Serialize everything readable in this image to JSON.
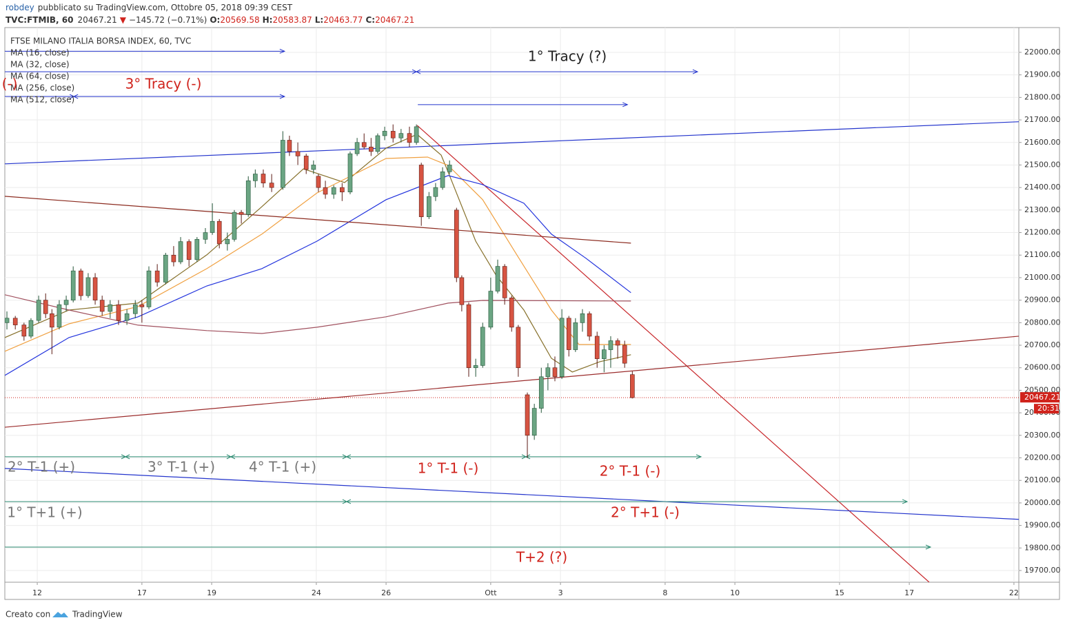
{
  "header": {
    "author": "robdey",
    "published": "pubblicato su TradingView.com, Ottobre 05, 2018 09:39 CEST",
    "symbol": "TVC:FTMIB, 60",
    "last": "20467.21",
    "arrow": "▼",
    "change": "−145.72 (−0.71%)",
    "ohlc": [
      {
        "label": "O:",
        "value": "20569.58"
      },
      {
        "label": "H:",
        "value": "20583.87"
      },
      {
        "label": "L:",
        "value": "20463.77"
      },
      {
        "label": "C:",
        "value": "20467.21"
      }
    ]
  },
  "footer": {
    "made_with": "Creato con",
    "brand": "TradingView"
  },
  "chart_data": {
    "type": "candlestick",
    "title": "FTSE MILANO ITALIA BORSA INDEX, 60, TVC",
    "xlim": [
      -0.93,
      28.14
    ],
    "ylim": [
      19648,
      22110
    ],
    "xticks": [
      {
        "value": 0,
        "label": "12"
      },
      {
        "value": 3,
        "label": "17"
      },
      {
        "value": 5,
        "label": "19"
      },
      {
        "value": 8,
        "label": "24"
      },
      {
        "value": 10,
        "label": "26"
      },
      {
        "value": 13,
        "label": "Ott"
      },
      {
        "value": 15,
        "label": "3"
      },
      {
        "value": 18,
        "label": "8"
      },
      {
        "value": 20,
        "label": "10"
      },
      {
        "value": 23,
        "label": "15"
      },
      {
        "value": 25,
        "label": "17"
      },
      {
        "value": 28,
        "label": "22"
      }
    ],
    "yticks": [
      {
        "value": 19700,
        "label": "19700.00"
      },
      {
        "value": 19800,
        "label": "19800.00"
      },
      {
        "value": 19900,
        "label": "19900.00"
      },
      {
        "value": 20000,
        "label": "20000.00"
      },
      {
        "value": 20100,
        "label": "20100.00"
      },
      {
        "value": 20200,
        "label": "20200.00"
      },
      {
        "value": 20300,
        "label": "20300.00"
      },
      {
        "value": 20400,
        "label": "20400.00"
      },
      {
        "value": 20500,
        "label": "20500.00"
      },
      {
        "value": 20600,
        "label": "20600.00"
      },
      {
        "value": 20700,
        "label": "20700.00"
      },
      {
        "value": 20800,
        "label": "20800.00"
      },
      {
        "value": 20900,
        "label": "20900.00"
      },
      {
        "value": 21000,
        "label": "21000.00"
      },
      {
        "value": 21100,
        "label": "21100.00"
      },
      {
        "value": 21200,
        "label": "21200.00"
      },
      {
        "value": 21300,
        "label": "21300.00"
      },
      {
        "value": 21400,
        "label": "21400.00"
      },
      {
        "value": 21500,
        "label": "21500.00"
      },
      {
        "value": 21600,
        "label": "21600.00"
      },
      {
        "value": 21700,
        "label": "21700.00"
      },
      {
        "value": 21800,
        "label": "21800.00"
      },
      {
        "value": 21900,
        "label": "21900.00"
      },
      {
        "value": 22000,
        "label": "22000.00"
      }
    ],
    "grid": true,
    "up_color": "#6ba583",
    "down_color": "#d75442",
    "last_price": 20467.21,
    "last_price_label": "20467.21",
    "countdown": "20:31",
    "last_color": "#d0231c",
    "candles": {
      "x": [
        -0.87,
        -0.63,
        -0.38,
        -0.18,
        0.04,
        0.24,
        0.42,
        0.63,
        0.83,
        1.03,
        1.25,
        1.46,
        1.66,
        1.86,
        2.09,
        2.33,
        2.57,
        2.81,
        3.0,
        3.2,
        3.44,
        3.68,
        3.91,
        4.11,
        4.35,
        4.58,
        4.82,
        5.02,
        5.22,
        5.45,
        5.65,
        5.85,
        6.05,
        6.25,
        6.48,
        6.72,
        7.04,
        7.23,
        7.47,
        7.71,
        7.92,
        8.06,
        8.26,
        8.5,
        8.74,
        8.97,
        9.17,
        9.37,
        9.57,
        9.76,
        9.96,
        10.2,
        10.43,
        10.67,
        10.87,
        11.01,
        11.23,
        11.42,
        11.62,
        11.82,
        12.02,
        12.17,
        12.37,
        12.57,
        12.77,
        13.0,
        13.2,
        13.4,
        13.6,
        13.79,
        14.05,
        14.25,
        14.45,
        14.64,
        14.84,
        15.04,
        15.24,
        15.43,
        15.63,
        15.83,
        16.05,
        16.25,
        16.44,
        16.64,
        16.84,
        17.06
      ],
      "open": [
        20800,
        20820,
        20790,
        20740,
        20810,
        20900,
        20840,
        20780,
        20880,
        20900,
        21030,
        20920,
        21000,
        20900,
        20850,
        20880,
        20810,
        20840,
        20880,
        20870,
        21030,
        20980,
        21100,
        21070,
        21160,
        21080,
        21170,
        21200,
        21250,
        21150,
        21170,
        21290,
        21280,
        21430,
        21460,
        21420,
        21400,
        21610,
        21560,
        21540,
        21480,
        21450,
        21400,
        21370,
        21400,
        21380,
        21550,
        21600,
        21580,
        21560,
        21630,
        21650,
        21620,
        21640,
        21600,
        21500,
        21270,
        21360,
        21400,
        21470,
        21300,
        21000,
        20880,
        20600,
        20610,
        20780,
        20940,
        21050,
        20910,
        20780,
        20480,
        20300,
        20420,
        20560,
        20600,
        20560,
        20820,
        20680,
        20800,
        20840,
        20740,
        20640,
        20680,
        20720,
        20700,
        20569.58
      ],
      "high": [
        20850,
        20830,
        20800,
        20820,
        20920,
        20930,
        20860,
        20900,
        20920,
        21050,
        21040,
        21020,
        21020,
        20920,
        20900,
        20900,
        20860,
        20900,
        20900,
        21050,
        21060,
        21110,
        21140,
        21180,
        21170,
        21180,
        21220,
        21330,
        21260,
        21200,
        21300,
        21300,
        21450,
        21480,
        21480,
        21460,
        21650,
        21630,
        21600,
        21550,
        21520,
        21460,
        21430,
        21410,
        21420,
        21560,
        21620,
        21640,
        21620,
        21640,
        21670,
        21680,
        21660,
        21670,
        21680,
        21510,
        21380,
        21420,
        21490,
        21520,
        21310,
        21010,
        20890,
        20640,
        20800,
        21000,
        21080,
        21060,
        20920,
        20790,
        20490,
        20440,
        20600,
        20620,
        20650,
        20860,
        20830,
        20820,
        20860,
        20850,
        20760,
        20700,
        20740,
        20730,
        20720,
        20583.87
      ],
      "low": [
        20770,
        20770,
        20720,
        20730,
        20800,
        20820,
        20660,
        20770,
        20850,
        20890,
        20900,
        20910,
        20880,
        20830,
        20820,
        20790,
        20790,
        20820,
        20800,
        20860,
        20960,
        20970,
        21050,
        21060,
        21050,
        21070,
        21150,
        21190,
        21130,
        21120,
        21160,
        21240,
        21270,
        21400,
        21400,
        21380,
        21390,
        21540,
        21500,
        21460,
        21460,
        21380,
        21350,
        21350,
        21340,
        21370,
        21540,
        21570,
        21540,
        21550,
        21610,
        21600,
        21600,
        21580,
        21590,
        21230,
        21260,
        21340,
        21390,
        21460,
        20980,
        20850,
        20560,
        20560,
        20600,
        20770,
        20930,
        20880,
        20760,
        20560,
        20200,
        20280,
        20400,
        20500,
        20540,
        20550,
        20650,
        20670,
        20760,
        20720,
        20600,
        20580,
        20600,
        20640,
        20600,
        20463.77
      ],
      "close": [
        20820,
        20790,
        20740,
        20810,
        20900,
        20840,
        20780,
        20880,
        20900,
        21030,
        20920,
        21000,
        20900,
        20850,
        20880,
        20810,
        20840,
        20880,
        20870,
        21030,
        20980,
        21100,
        21070,
        21160,
        21080,
        21170,
        21200,
        21250,
        21150,
        21170,
        21290,
        21280,
        21430,
        21460,
        21420,
        21400,
        21610,
        21560,
        21540,
        21480,
        21500,
        21400,
        21370,
        21400,
        21380,
        21550,
        21600,
        21580,
        21560,
        21630,
        21650,
        21620,
        21640,
        21600,
        21670,
        21270,
        21360,
        21400,
        21470,
        21500,
        21000,
        20880,
        20600,
        20610,
        20780,
        20940,
        21050,
        20910,
        20780,
        20600,
        20300,
        20420,
        20560,
        20600,
        20560,
        20820,
        20680,
        20800,
        20840,
        20740,
        20640,
        20680,
        20720,
        20700,
        20620,
        20467.21
      ]
    },
    "series": [
      {
        "name": "MA (16, close)",
        "color": "#86702a",
        "x": [
          -0.93,
          0.91,
          2.89,
          4.86,
          6.44,
          7.63,
          8.81,
          10.0,
          10.89,
          11.58,
          11.78,
          12.57,
          13.16,
          13.95,
          14.74,
          15.34,
          16.13,
          17.02
        ],
        "values": [
          20734,
          20856,
          20887,
          21101,
          21315,
          21483,
          21422,
          21575,
          21636,
          21544,
          21468,
          21162,
          21009,
          20856,
          20642,
          20581,
          20627,
          20658
        ]
      },
      {
        "name": "MA (32, close)",
        "color": "#f0a040",
        "x": [
          -0.93,
          0.91,
          2.89,
          4.86,
          6.44,
          8.02,
          10.0,
          11.19,
          11.78,
          12.77,
          13.75,
          14.74,
          15.53,
          17.02
        ],
        "values": [
          20673,
          20795,
          20872,
          21040,
          21193,
          21376,
          21529,
          21535,
          21498,
          21346,
          21101,
          20856,
          20703,
          20703
        ]
      },
      {
        "name": "MA (64, close)",
        "color": "#2233dd",
        "x": [
          -0.93,
          0.91,
          2.89,
          4.86,
          6.44,
          8.02,
          10.0,
          11.78,
          12.77,
          13.95,
          14.74,
          15.73,
          17.02
        ],
        "values": [
          20566,
          20734,
          20826,
          20963,
          21040,
          21162,
          21346,
          21453,
          21413,
          21330,
          21193,
          21086,
          20933
        ]
      },
      {
        "name": "MA (256, close)",
        "color": "#a0505e",
        "x": [
          -0.93,
          0.91,
          2.89,
          4.86,
          6.44,
          8.02,
          10.0,
          11.78,
          12.77,
          17.02
        ],
        "values": [
          20924,
          20856,
          20789,
          20765,
          20752,
          20780,
          20826,
          20887,
          20899,
          20896
        ]
      },
      {
        "name": "MA (512, close)",
        "color": "#8b2a1e",
        "x": [
          -0.93,
          17.02
        ],
        "values": [
          21361,
          21153
        ]
      }
    ],
    "trend_lines": [
      {
        "color": "#2233cc",
        "x": [
          -0.93,
          28.14
        ],
        "values": [
          21505,
          21692
        ]
      },
      {
        "color": "#c8262a",
        "x": [
          10.89,
          25.57
        ],
        "values": [
          21676,
          19648
        ]
      },
      {
        "color": "#9a2a2a",
        "x": [
          -0.93,
          28.14
        ],
        "values": [
          20336,
          20740
        ]
      },
      {
        "color": "#2233cc",
        "x": [
          -0.93,
          28.14
        ],
        "values": [
          20153,
          19927
        ]
      }
    ],
    "arrows": [
      {
        "color": "#2233cc",
        "x": [
          -0.93,
          7.09
        ],
        "value": 22005,
        "marks": []
      },
      {
        "color": "#2233cc",
        "x": [
          -0.93,
          18.93
        ],
        "value": 21914,
        "marks": [
          10.87
        ]
      },
      {
        "color": "#2233cc",
        "x": [
          -0.93,
          7.09
        ],
        "value": 21804,
        "marks": [
          1.05
        ]
      },
      {
        "color": "#2233cc",
        "x": [
          10.91,
          16.92
        ],
        "value": 21768,
        "marks": []
      },
      {
        "color": "#2a8a70",
        "x": [
          -0.93,
          19.03
        ],
        "value": 20205,
        "marks": [
          2.53,
          5.55,
          8.87,
          14.01
        ]
      },
      {
        "color": "#2a8a70",
        "x": [
          -0.93,
          24.94
        ],
        "value": 20006,
        "marks": [
          8.87
        ]
      },
      {
        "color": "#2a8a70",
        "x": [
          -0.93,
          25.61
        ],
        "value": 19804,
        "marks": []
      }
    ],
    "annotations": [
      {
        "text": "1° Tracy (?)",
        "color": "#222222"
      },
      {
        "text": "3° Tracy (-)",
        "color": "#d0231c"
      },
      {
        "text": "(-)",
        "color": "#d0231c"
      },
      {
        "text": "2° T-1 (+)",
        "color": "#777777"
      },
      {
        "text": "3° T-1 (+)",
        "color": "#777777"
      },
      {
        "text": "4° T-1 (+)",
        "color": "#777777"
      },
      {
        "text": "1° T-1 (-)",
        "color": "#d0231c"
      },
      {
        "text": "2° T-1 (-)",
        "color": "#d0231c"
      },
      {
        "text": "1° T+1 (+)",
        "color": "#777777"
      },
      {
        "text": "2° T+1 (-)",
        "color": "#d0231c"
      },
      {
        "text": "T+2 (?)",
        "color": "#d0231c"
      }
    ]
  }
}
